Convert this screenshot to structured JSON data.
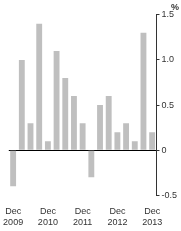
{
  "chart_data": {
    "type": "bar",
    "y_label": "%",
    "categories": [
      "Dec 2009",
      null,
      null,
      null,
      "Dec 2010",
      null,
      null,
      null,
      "Dec 2011",
      null,
      null,
      null,
      "Dec 2012",
      null,
      null,
      null,
      "Dec 2013"
    ],
    "values": [
      -0.4,
      1.0,
      0.3,
      1.4,
      0.1,
      1.1,
      0.8,
      0.6,
      0.3,
      -0.3,
      0.5,
      0.6,
      0.2,
      0.3,
      0.1,
      1.3,
      0.2
    ],
    "color": "#bfbfbf",
    "ylim": [
      -0.5,
      1.5
    ],
    "yticks": [
      -0.5,
      0,
      0.5,
      {
        "value": 1,
        "label": "1.0"
      },
      1.5
    ],
    "grid": false
  }
}
